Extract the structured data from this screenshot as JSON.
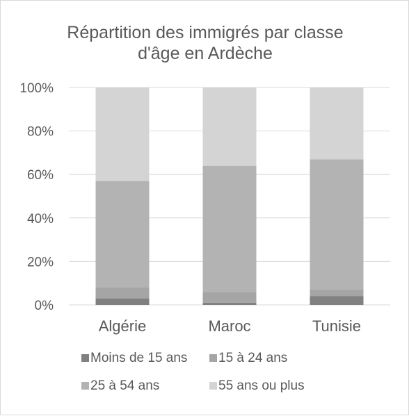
{
  "chart_data": {
    "type": "bar",
    "stacked": true,
    "title": "Répartition des immigrés par classe d'âge en Ardèche",
    "title_lines": [
      "Répartition des immigrés par classe",
      "d'âge en Ardèche"
    ],
    "categories": [
      "Algérie",
      "Maroc",
      "Tunisie"
    ],
    "y_ticks": [
      "0%",
      "20%",
      "40%",
      "60%",
      "80%",
      "100%"
    ],
    "ylim": [
      0,
      100
    ],
    "grid": true,
    "legend_position": "bottom",
    "series": [
      {
        "name": "Moins de 15 ans",
        "color": "#808080",
        "values": [
          3,
          1,
          4
        ]
      },
      {
        "name": "15 à 24 ans",
        "color": "#a5a5a5",
        "values": [
          5,
          5,
          3
        ]
      },
      {
        "name": "25 à 54 ans",
        "color": "#b3b3b3",
        "values": [
          49,
          58,
          60
        ]
      },
      {
        "name": "55 ans ou plus",
        "color": "#d4d4d4",
        "values": [
          43,
          36,
          33
        ]
      }
    ]
  }
}
